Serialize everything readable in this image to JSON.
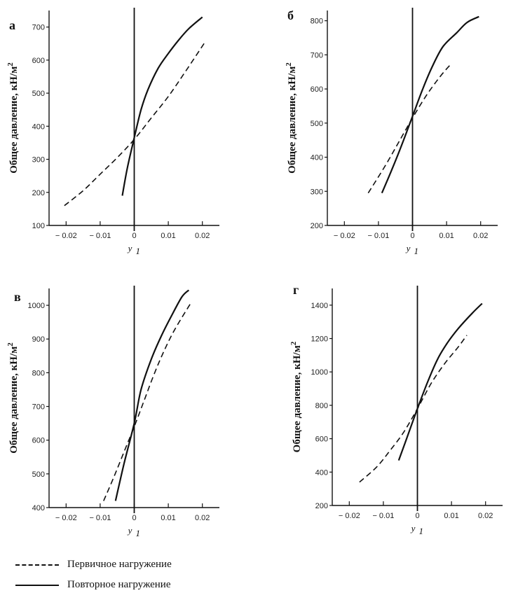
{
  "legend": {
    "primary_label": "Первичное нагружение",
    "repeat_label": "Повторное нагружение"
  },
  "chart_data": [
    {
      "type": "line",
      "panel_label": "а",
      "xlabel": "y",
      "xlabel_sub": "1",
      "ylabel": "Общее давление, кН/м",
      "ylabel_sup": "2",
      "xlim": [
        -0.025,
        0.025
      ],
      "ylim": [
        100,
        750
      ],
      "x_ticks": [
        -0.02,
        -0.01,
        0,
        0.01,
        0.02
      ],
      "x_tick_labels": [
        "− 0.02",
        "− 0.01",
        "0",
        "0.01",
        "0.02"
      ],
      "y_ticks": [
        100,
        200,
        300,
        400,
        500,
        600,
        700
      ],
      "y_tick_labels": [
        "100",
        "200",
        "300",
        "400",
        "500",
        "600",
        "700"
      ],
      "series": [
        {
          "name": "Первичное нагружение",
          "style": "dashed",
          "x": [
            -0.0205,
            -0.015,
            -0.01,
            -0.005,
            0,
            0.005,
            0.01,
            0.015,
            0.0205
          ],
          "y": [
            160,
            205,
            255,
            305,
            360,
            425,
            490,
            565,
            650
          ]
        },
        {
          "name": "Повторное нагружение",
          "style": "solid",
          "x": [
            -0.0035,
            -0.002,
            0,
            0.002,
            0.004,
            0.007,
            0.01,
            0.013,
            0.016,
            0.02
          ],
          "y": [
            190,
            275,
            365,
            450,
            510,
            575,
            620,
            660,
            695,
            730
          ]
        }
      ]
    },
    {
      "type": "line",
      "panel_label": "б",
      "xlabel": "y",
      "xlabel_sub": "1",
      "ylabel": "Общее давление, кН/м",
      "ylabel_sup": "2",
      "xlim": [
        -0.025,
        0.025
      ],
      "ylim": [
        200,
        830
      ],
      "x_ticks": [
        -0.02,
        -0.01,
        0,
        0.01,
        0.02
      ],
      "x_tick_labels": [
        "− 0.02",
        "− 0.01",
        "0",
        "0.01",
        "0.02"
      ],
      "y_ticks": [
        200,
        300,
        400,
        500,
        600,
        700,
        800
      ],
      "y_tick_labels": [
        "200",
        "300",
        "400",
        "500",
        "600",
        "700",
        "800"
      ],
      "series": [
        {
          "name": "Первичное нагружение",
          "style": "dashed",
          "x": [
            -0.013,
            -0.008,
            -0.004,
            0,
            0.004,
            0.008,
            0.011
          ],
          "y": [
            295,
            375,
            445,
            515,
            580,
            635,
            670
          ]
        },
        {
          "name": "Повторное нагружение",
          "style": "solid",
          "x": [
            -0.009,
            -0.006,
            -0.003,
            0,
            0.003,
            0.006,
            0.009,
            0.013,
            0.016,
            0.0195
          ],
          "y": [
            295,
            365,
            440,
            520,
            600,
            670,
            725,
            765,
            795,
            812
          ]
        }
      ]
    },
    {
      "type": "line",
      "panel_label": "в",
      "xlabel": "y",
      "xlabel_sub": "1",
      "ylabel": "Общее давление, кН/м",
      "ylabel_sup": "2",
      "xlim": [
        -0.025,
        0.025
      ],
      "ylim": [
        400,
        1050
      ],
      "x_ticks": [
        -0.02,
        -0.01,
        0,
        0.01,
        0.02
      ],
      "x_tick_labels": [
        "− 0.02",
        "− 0.01",
        "0",
        "0.01",
        "0.02"
      ],
      "y_ticks": [
        400,
        500,
        600,
        700,
        800,
        900,
        1000
      ],
      "y_tick_labels": [
        "400",
        "500",
        "600",
        "700",
        "800",
        "900",
        "1000"
      ],
      "series": [
        {
          "name": "Первичное нагружение",
          "style": "dashed",
          "x": [
            -0.009,
            -0.006,
            -0.003,
            0,
            0.003,
            0.006,
            0.009,
            0.012,
            0.0165
          ],
          "y": [
            420,
            490,
            565,
            640,
            720,
            800,
            870,
            930,
            1005
          ]
        },
        {
          "name": "Повторное нагружение",
          "style": "solid",
          "x": [
            -0.0055,
            -0.003,
            0,
            0.002,
            0.005,
            0.008,
            0.011,
            0.014,
            0.016
          ],
          "y": [
            420,
            530,
            650,
            750,
            840,
            910,
            970,
            1025,
            1045
          ]
        }
      ]
    },
    {
      "type": "line",
      "panel_label": "г",
      "xlabel": "y",
      "xlabel_sub": "1",
      "ylabel": "Общее давление, кН/м",
      "ylabel_sup": "2",
      "xlim": [
        -0.025,
        0.025
      ],
      "ylim": [
        200,
        1500
      ],
      "x_ticks": [
        -0.02,
        -0.01,
        0,
        0.01,
        0.02
      ],
      "x_tick_labels": [
        "− 0.02",
        "− 0.01",
        "0",
        "0.01",
        "0.02"
      ],
      "y_ticks": [
        200,
        400,
        600,
        800,
        1000,
        1200,
        1400
      ],
      "y_tick_labels": [
        "200",
        "400",
        "600",
        "800",
        "1000",
        "1200",
        "1400"
      ],
      "series": [
        {
          "name": "Первичное нагружение",
          "style": "dashed",
          "x": [
            -0.017,
            -0.012,
            -0.008,
            -0.004,
            0,
            0.004,
            0.008,
            0.012,
            0.0145
          ],
          "y": [
            340,
            430,
            530,
            640,
            780,
            930,
            1050,
            1150,
            1220
          ]
        },
        {
          "name": "Повторное нагружение",
          "style": "solid",
          "x": [
            -0.0055,
            -0.003,
            0,
            0.003,
            0.006,
            0.009,
            0.012,
            0.016,
            0.019
          ],
          "y": [
            470,
            610,
            780,
            940,
            1080,
            1180,
            1260,
            1350,
            1410
          ]
        }
      ]
    }
  ]
}
